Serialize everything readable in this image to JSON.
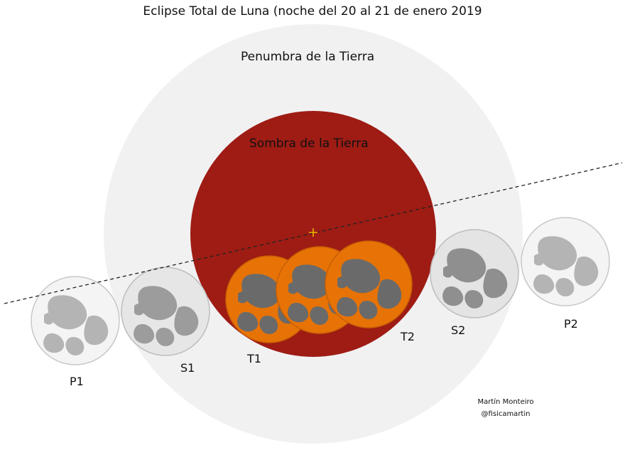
{
  "title": "Eclipse Total de Luna (noche del 20 al 21 de enero 2019",
  "penumbra_label": "Penumbra de la Tierra",
  "umbra_label": "Sombra de la Tierra",
  "phases": [
    {
      "id": "P1",
      "label": "P1"
    },
    {
      "id": "S1",
      "label": "S1"
    },
    {
      "id": "T1",
      "label": "T1"
    },
    {
      "id": "T2",
      "label": "T2"
    },
    {
      "id": "S2",
      "label": "S2"
    },
    {
      "id": "P2",
      "label": "P2"
    }
  ],
  "credit": {
    "author": "Martín Monteiro",
    "handle": "@fisicamartin"
  },
  "colors": {
    "penumbra": "#f1f1f2",
    "umbra": "#9e1c14",
    "moon_eclipsed": "#e77306",
    "moon_eclipsed_maria": "#6a6a6a",
    "moon_normal": "#eeeeee",
    "moon_normal_maria": "#a9a9a9",
    "center_mark": "#f0b000"
  }
}
